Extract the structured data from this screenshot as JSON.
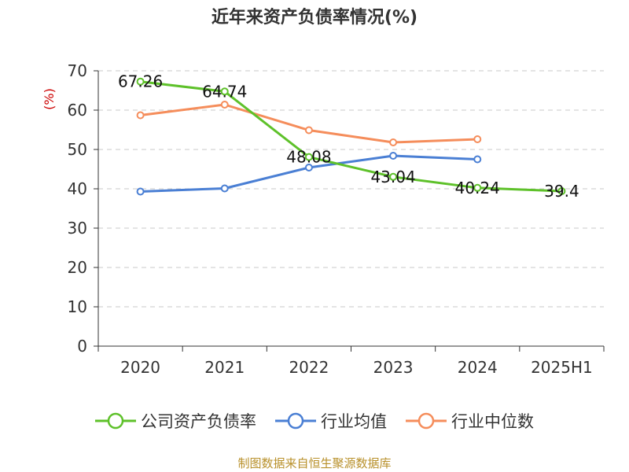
{
  "chart_data": {
    "type": "line",
    "title": "近年来资产负债率情况(%)",
    "ylabel": "(%)",
    "xlabel": "",
    "categories": [
      "2020",
      "2021",
      "2022",
      "2023",
      "2024",
      "2025H1"
    ],
    "ylim": [
      0,
      70
    ],
    "yticks": [
      0,
      10,
      20,
      30,
      40,
      50,
      60,
      70
    ],
    "grid": true,
    "legend_position": "bottom",
    "series": [
      {
        "name": "公司资产负债率",
        "color": "#5ec12a",
        "values": [
          67.26,
          64.74,
          48.08,
          43.04,
          40.24,
          39.4
        ],
        "labels": [
          "67.26",
          "64.74",
          "48.08",
          "43.04",
          "40.24",
          "39.4"
        ]
      },
      {
        "name": "行业均值",
        "color": "#4a7fd4",
        "values": [
          39.3,
          40.1,
          45.4,
          48.4,
          47.5,
          null
        ]
      },
      {
        "name": "行业中位数",
        "color": "#f58d5b",
        "values": [
          58.7,
          61.4,
          54.9,
          51.8,
          52.6,
          null
        ]
      }
    ]
  },
  "source": "制图数据来自恒生聚源数据库"
}
